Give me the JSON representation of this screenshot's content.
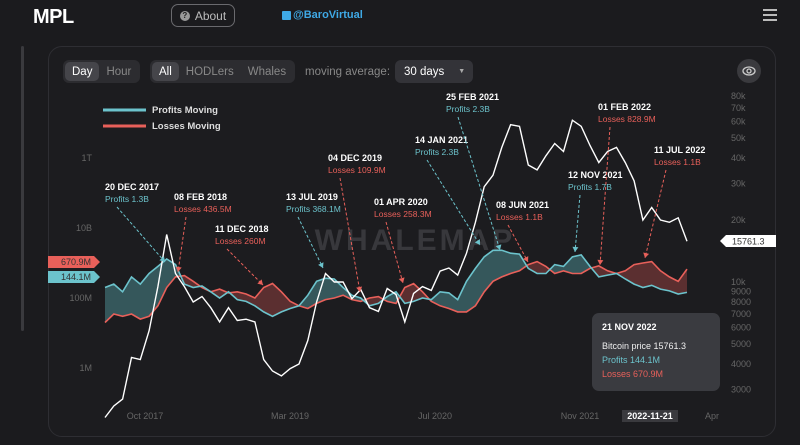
{
  "header": {
    "logo": "MPL",
    "about_label": "About",
    "twitter_handle": "@BaroVirtual"
  },
  "toolbar": {
    "interval": [
      "Day",
      "Hour"
    ],
    "interval_selected": "Day",
    "cohort": [
      "All",
      "HODLers",
      "Whales"
    ],
    "cohort_selected": "All",
    "moving_average_label": "moving average:",
    "moving_average_value": "30 days"
  },
  "watermark": "WHALEMAP",
  "colors": {
    "profits": "#6cc3cc",
    "losses": "#e8605a",
    "price": "#ffffff",
    "bg": "#1c1c1f"
  },
  "chart_data": {
    "type": "line",
    "legend": [
      "Profits Moving",
      "Losses Moving"
    ],
    "legend_position": "top-left",
    "left_axis_ticks": [
      "1T",
      "10B",
      "100M",
      "1M"
    ],
    "right_axis_ticks": [
      "80k",
      "70k",
      "60k",
      "50k",
      "40k",
      "30k",
      "20k",
      "10k",
      "9000",
      "8000",
      "7000",
      "6000",
      "5000",
      "4000",
      "3000"
    ],
    "x_ticks": [
      "Oct 2017",
      "Mar 2019",
      "Jul 2020",
      "Nov 2021",
      "Apr"
    ],
    "x_cursor_label": "2022-11-21",
    "x_start": "2017-05",
    "x_frequency": "monthly",
    "price_usd": [
      2200,
      2500,
      2700,
      4300,
      4200,
      5800,
      9500,
      17000,
      11000,
      9500,
      8000,
      8500,
      7500,
      6400,
      7500,
      6500,
      6600,
      6400,
      4200,
      3700,
      3500,
      3800,
      4000,
      5200,
      8000,
      11000,
      10000,
      10000,
      8300,
      9200,
      7500,
      7200,
      9300,
      8700,
      6400,
      8800,
      9500,
      9100,
      11300,
      11700,
      10800,
      13800,
      19500,
      29000,
      33000,
      45000,
      58000,
      57000,
      37000,
      35000,
      41000,
      47000,
      43000,
      61000,
      57000,
      46000,
      38000,
      43000,
      45000,
      38000,
      31000,
      20000,
      23000,
      20000,
      19500,
      20500,
      15761.3
    ],
    "profits_musd": [
      200,
      250,
      150,
      400,
      250,
      500,
      800,
      1300,
      900,
      250,
      200,
      220,
      150,
      100,
      150,
      90,
      80,
      60,
      40,
      30,
      40,
      50,
      60,
      120,
      300,
      368.1,
      350,
      200,
      120,
      100,
      60,
      70,
      110,
      150,
      70,
      80,
      100,
      90,
      150,
      140,
      90,
      300,
      700,
      1500,
      2300,
      2300,
      1900,
      1800,
      700,
      500,
      500,
      900,
      800,
      1500,
      1700,
      800,
      400,
      450,
      500,
      350,
      250,
      200,
      230,
      180,
      160,
      130,
      144.1
    ],
    "losses_musd": [
      20,
      35,
      30,
      35,
      25,
      30,
      60,
      200,
      400,
      436.5,
      300,
      200,
      150,
      180,
      140,
      150,
      130,
      100,
      200,
      260,
      150,
      80,
      60,
      50,
      70,
      90,
      100,
      120,
      90,
      80,
      100,
      109.9,
      80,
      70,
      200,
      258.3,
      150,
      80,
      60,
      50,
      40,
      40,
      60,
      150,
      300,
      400,
      500,
      600,
      900,
      1100,
      800,
      500,
      600,
      500,
      500,
      700,
      828.9,
      600,
      500,
      600,
      900,
      1000,
      1100,
      600,
      400,
      300,
      670.9
    ],
    "current": {
      "losses_tag": "670.9M",
      "profits_tag": "144.1M",
      "price_tag": "15761.3"
    },
    "annotations": [
      {
        "date": "20 DEC 2017",
        "text": "Profits 1.3B",
        "series": "profits"
      },
      {
        "date": "08 FEB 2018",
        "text": "Losses 436.5M",
        "series": "losses"
      },
      {
        "date": "11 DEC 2018",
        "text": "Losses 260M",
        "series": "losses"
      },
      {
        "date": "13 JUL 2019",
        "text": "Profits 368.1M",
        "series": "profits"
      },
      {
        "date": "04 DEC 2019",
        "text": "Losses 109.9M",
        "series": "losses"
      },
      {
        "date": "01 APR 2020",
        "text": "Losses 258.3M",
        "series": "losses"
      },
      {
        "date": "14 JAN 2021",
        "text": "Profits 2.3B",
        "series": "profits"
      },
      {
        "date": "25 FEB 2021",
        "text": "Profits 2.3B",
        "series": "profits"
      },
      {
        "date": "08 JUN 2021",
        "text": "Losses 1.1B",
        "series": "losses"
      },
      {
        "date": "12 NOV 2021",
        "text": "Profits 1.7B",
        "series": "profits"
      },
      {
        "date": "01 FEB 2022",
        "text": "Losses 828.9M",
        "series": "losses"
      },
      {
        "date": "11 JUL 2022",
        "text": "Losses 1.1B",
        "series": "losses"
      }
    ]
  },
  "tooltip": {
    "date": "21 NOV 2022",
    "price": "Bitcoin price 15761.3",
    "profits": "Profits 144.1M",
    "losses": "Losses 670.9M"
  }
}
